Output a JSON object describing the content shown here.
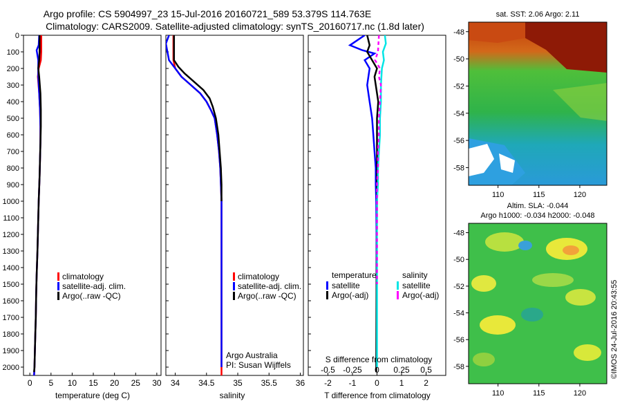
{
  "header": {
    "title_line1": "Argo profile: CS 5904997_23 15-Jul-2016 20160721_589 53.379S 114.763E",
    "title_line2": "Climatology: CARS2009. Satellite-adjusted climatology: synTS_20160717.nc (1.8d later)"
  },
  "depth_ticks": [
    0,
    100,
    200,
    300,
    400,
    500,
    600,
    700,
    800,
    900,
    1000,
    1100,
    1200,
    1300,
    1400,
    1500,
    1600,
    1700,
    1800,
    1900,
    2000
  ],
  "colors": {
    "climatology": "#ff0000",
    "satellite": "#0000ff",
    "argo": "#000000",
    "sal_satellite": "#00e5e5",
    "sal_argo": "#ff00ff"
  },
  "panels": {
    "temperature": {
      "xlabel": "temperature (deg C)",
      "ticks": [
        0,
        5,
        10,
        15,
        20,
        25,
        30
      ],
      "legend": [
        "climatology",
        "satellite-adj. clim.",
        "Argo(..raw -QC)"
      ]
    },
    "salinity": {
      "xlabel": "salinity",
      "ticks": [
        "34",
        "34.5",
        "35",
        "35.5",
        "36"
      ],
      "legend": [
        "climatology",
        "satellite-adj. clim.",
        "Argo(..raw -QC)"
      ],
      "note_line1": "Argo Australia",
      "note_line2": "PI: Susan Wijffels"
    },
    "difference": {
      "xlabel": "T difference from climatology",
      "top_label": "S difference from climatology",
      "bottom_ticks": [
        "-2",
        "-1",
        "0",
        "1",
        "2"
      ],
      "top_ticks": [
        "-0.5",
        "-0.25",
        "0",
        "0.25",
        "0.5"
      ],
      "legend_temperature_header": "temperature",
      "legend_salinity_header": "salinity",
      "legend_satellite": "satellite",
      "legend_argo": "Argo(-adj)"
    },
    "sst_map": {
      "title": "sat. SST: 2.06 Argo: 2.11",
      "lat_ticks": [
        "-48",
        "-50",
        "-52",
        "-54",
        "-56",
        "-58"
      ],
      "lon_ticks": [
        "110",
        "115",
        "120"
      ]
    },
    "sla_map": {
      "title_line1": "Altim. SLA: -0.044",
      "title_line2": "Argo h1000: -0.034 h2000: -0.048",
      "lat_ticks": [
        "-48",
        "-50",
        "-52",
        "-54",
        "-56",
        "-58"
      ],
      "lon_ticks": [
        "110",
        "115",
        "120"
      ]
    }
  },
  "side_stamp": "©IMOS 24-Jul-2016 20:43:55",
  "chart_data": [
    {
      "type": "line",
      "xlabel": "temperature (deg C)",
      "ylabel": "",
      "xlim": [
        -1.5,
        31
      ],
      "ylim": [
        2050,
        0
      ],
      "series": [
        {
          "name": "climatology",
          "x": [
            2.7,
            2.7,
            2.6,
            2.1,
            1.9,
            2.2,
            2.4,
            2.5,
            2.5,
            2.4,
            2.3,
            2.1,
            2.0,
            1.9,
            1.8,
            1.6,
            1.5,
            1.4,
            1.3,
            1.2,
            1.1,
            1.0
          ],
          "y": [
            0,
            100,
            150,
            200,
            250,
            350,
            450,
            550,
            650,
            750,
            850,
            1000,
            1100,
            1200,
            1300,
            1450,
            1550,
            1700,
            1800,
            1900,
            2000,
            2050
          ]
        },
        {
          "name": "satellite-adj. clim.",
          "x": [
            2.2,
            2.1,
            1.6,
            2.0,
            2.0,
            2.2,
            2.4,
            2.5,
            2.5,
            2.4,
            2.3,
            2.1,
            2.0,
            1.9,
            1.8,
            1.6,
            1.5,
            1.4,
            1.3,
            1.2,
            1.1,
            1.0
          ],
          "y": [
            0,
            60,
            90,
            150,
            250,
            350,
            450,
            550,
            650,
            750,
            850,
            1000,
            1100,
            1200,
            1300,
            1450,
            1550,
            1700,
            1800,
            1900,
            2000,
            2050
          ]
        },
        {
          "name": "Argo(..raw -QC)",
          "x": [
            2.3,
            2.3,
            2.2,
            2.0,
            2.2,
            2.5,
            2.6,
            2.6,
            2.5,
            2.4,
            2.3,
            2.1,
            2.0,
            1.9,
            1.8,
            1.6,
            1.5,
            1.4,
            1.3,
            1.2,
            1.1,
            1.0
          ],
          "y": [
            0,
            100,
            150,
            200,
            250,
            350,
            450,
            550,
            650,
            750,
            850,
            1000,
            1100,
            1200,
            1300,
            1450,
            1550,
            1700,
            1800,
            1900,
            2000,
            2030
          ]
        }
      ]
    },
    {
      "type": "line",
      "xlabel": "salinity",
      "ylabel": "",
      "xlim": [
        33.85,
        36.05
      ],
      "ylim": [
        2050,
        0
      ],
      "series": [
        {
          "name": "climatology",
          "x": [
            33.97,
            33.97,
            34.0,
            34.1,
            34.25,
            34.4,
            34.5,
            34.57,
            34.63,
            34.67,
            34.7,
            34.72,
            34.73,
            34.74,
            34.74,
            34.74,
            34.74,
            34.74
          ],
          "y": [
            0,
            150,
            200,
            250,
            300,
            350,
            400,
            450,
            500,
            600,
            700,
            800,
            900,
            1000,
            1200,
            1500,
            1800,
            2050
          ]
        },
        {
          "name": "satellite-adj. clim.",
          "x": [
            33.9,
            33.85,
            33.9,
            34.0,
            34.1,
            34.25,
            34.4,
            34.5,
            34.57,
            34.63,
            34.67,
            34.7,
            34.72,
            34.73,
            34.74,
            34.74,
            34.74,
            34.74,
            34.74
          ],
          "y": [
            0,
            50,
            150,
            200,
            250,
            300,
            350,
            400,
            450,
            500,
            600,
            700,
            800,
            900,
            1000,
            1200,
            1500,
            1800,
            2000
          ]
        },
        {
          "name": "Argo(..raw -QC)",
          "x": [
            33.98,
            33.98,
            34.05,
            34.15,
            34.3,
            34.45,
            34.55,
            34.6,
            34.65,
            34.69,
            34.71,
            34.73,
            34.74,
            34.74
          ],
          "y": [
            0,
            150,
            190,
            230,
            280,
            330,
            380,
            430,
            500,
            600,
            700,
            800,
            900,
            1000
          ]
        }
      ]
    },
    {
      "type": "line",
      "xlabel": "T difference from climatology",
      "x2label": "S difference from climatology",
      "xlim": [
        -2.8,
        2.8
      ],
      "x2lim": [
        -0.7,
        0.7
      ],
      "ylim": [
        2050,
        0
      ],
      "series": [
        {
          "name": "temperature satellite",
          "axis": "T",
          "x": [
            -0.5,
            -1.1,
            -0.6,
            -0.1,
            -0.5,
            -0.3,
            -0.4,
            -0.3,
            -0.2,
            -0.15,
            -0.1,
            -0.05,
            -0.05,
            -0.03,
            -0.02,
            -0.02,
            -0.02
          ],
          "y": [
            0,
            60,
            90,
            110,
            150,
            200,
            300,
            400,
            500,
            600,
            700,
            800,
            900,
            1000,
            1200,
            1500,
            2000
          ]
        },
        {
          "name": "temperature Argo(-adj)",
          "axis": "T",
          "x": [
            -0.4,
            -0.3,
            -0.4,
            -0.2,
            0.0,
            -0.1,
            -0.05,
            0.05,
            0.0,
            0.0,
            0.0,
            0.0,
            0.0,
            0.0,
            -0.02,
            -0.03
          ],
          "y": [
            0,
            60,
            100,
            150,
            200,
            250,
            300,
            400,
            500,
            600,
            700,
            800,
            900,
            1000,
            1500,
            2030
          ]
        },
        {
          "name": "salinity satellite",
          "axis": "S",
          "x": [
            0.08,
            0.09,
            0.06,
            0.07,
            0.05,
            0.04,
            0.04,
            0.03,
            0.03,
            0.02,
            0.01,
            0.01,
            0.0,
            0.0,
            0.0
          ],
          "y": [
            0,
            50,
            100,
            150,
            200,
            300,
            400,
            500,
            600,
            700,
            800,
            900,
            1000,
            1500,
            2000
          ]
        },
        {
          "name": "salinity Argo(-adj)",
          "axis": "S",
          "x": [
            0.02,
            0.01,
            -0.02,
            0.03,
            0.02,
            0.04,
            0.03,
            0.02,
            0.02,
            0.01,
            0.01,
            0.0,
            0.0,
            0.0
          ],
          "y": [
            0,
            100,
            150,
            200,
            250,
            300,
            400,
            500,
            600,
            700,
            800,
            900,
            1000,
            1500
          ]
        }
      ]
    }
  ]
}
